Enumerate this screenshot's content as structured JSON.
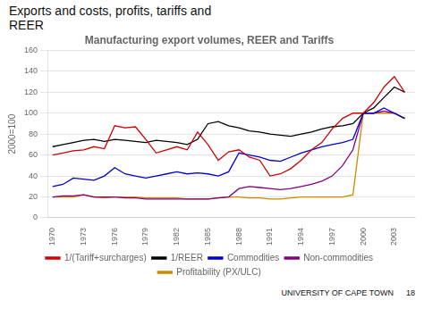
{
  "chart_data": {
    "type": "line",
    "title": "Manufacturing export volumes, REER and Tariffs",
    "subtitle": "Exports and costs, profits, tariffs and\nREER",
    "ylabel": "2000=100",
    "annotations": [
      "UNIVERSITY OF CAPE TOWN",
      "18"
    ],
    "x": [
      1970,
      1971,
      1972,
      1973,
      1974,
      1975,
      1976,
      1977,
      1978,
      1979,
      1980,
      1981,
      1982,
      1983,
      1984,
      1985,
      1986,
      1987,
      1988,
      1989,
      1990,
      1991,
      1992,
      1993,
      1994,
      1995,
      1996,
      1997,
      1998,
      1999,
      2000,
      2001,
      2002,
      2003,
      2004
    ],
    "xlim": [
      1969.5,
      2005
    ],
    "xticks": [
      1970,
      1973,
      1976,
      1979,
      1982,
      1985,
      1988,
      1991,
      1994,
      1997,
      2000,
      2003
    ],
    "ylim": [
      0,
      160
    ],
    "yticks": [
      0,
      20,
      40,
      60,
      80,
      100,
      120,
      140,
      160
    ],
    "grid": "y",
    "legend": "bottom",
    "series": [
      {
        "name": "1/(Tariff+surcharges)",
        "color": "#cc0000",
        "values": [
          60,
          62,
          64,
          65,
          68,
          66,
          88,
          86,
          87,
          75,
          62,
          65,
          68,
          65,
          82,
          70,
          55,
          63,
          65,
          58,
          55,
          40,
          42,
          47,
          55,
          65,
          72,
          85,
          95,
          100,
          100,
          110,
          125,
          135,
          120
        ]
      },
      {
        "name": "1/REER",
        "color": "#000000",
        "values": [
          68,
          70,
          72,
          74,
          75,
          73,
          75,
          74,
          73,
          72,
          74,
          73,
          72,
          70,
          75,
          90,
          92,
          88,
          86,
          83,
          82,
          80,
          79,
          78,
          80,
          82,
          85,
          87,
          88,
          90,
          100,
          105,
          115,
          125,
          120
        ]
      },
      {
        "name": "Commodities",
        "color": "#0000cc",
        "values": [
          30,
          32,
          38,
          37,
          36,
          40,
          48,
          42,
          40,
          38,
          40,
          42,
          44,
          42,
          43,
          42,
          40,
          44,
          62,
          60,
          58,
          55,
          54,
          58,
          62,
          65,
          68,
          70,
          72,
          75,
          100,
          100,
          105,
          100,
          95
        ]
      },
      {
        "name": "Non-commodities",
        "color": "#800080",
        "values": [
          20,
          21,
          21,
          22,
          20,
          20,
          20,
          19,
          19,
          18,
          18,
          18,
          18,
          18,
          18,
          18,
          19,
          20,
          28,
          30,
          29,
          28,
          27,
          28,
          30,
          32,
          35,
          40,
          50,
          65,
          100,
          100,
          102,
          100,
          95
        ]
      },
      {
        "name": "Profitability (PX/ULC)",
        "color": "#cc8800",
        "values": [
          20,
          20,
          20,
          22,
          20,
          19,
          20,
          20,
          20,
          19,
          19,
          19,
          19,
          18,
          18,
          18,
          19,
          20,
          20,
          19,
          19,
          18,
          18,
          19,
          20,
          20,
          20,
          20,
          20,
          22,
          100,
          100,
          100,
          100,
          95
        ]
      }
    ]
  }
}
